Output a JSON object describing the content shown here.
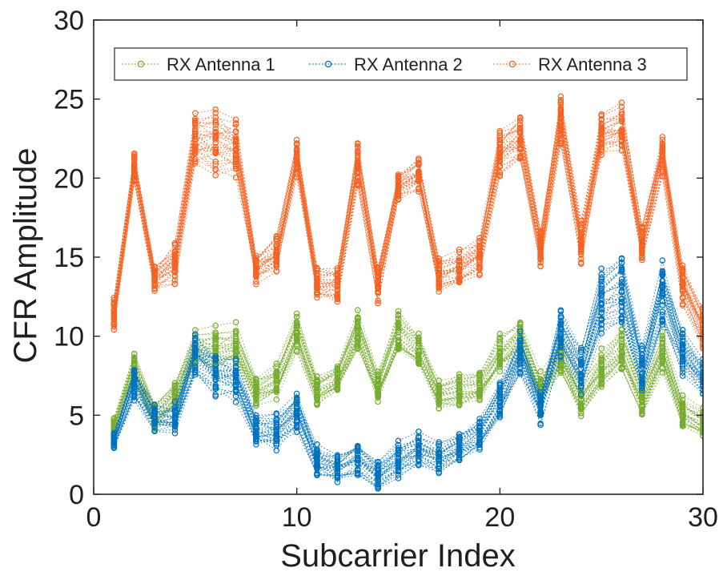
{
  "chart_data": {
    "type": "line",
    "xlabel": "Subcarrier Index",
    "ylabel": "CFR Amplitude",
    "xlim": [
      0,
      30
    ],
    "ylim": [
      0,
      30
    ],
    "xticks": [
      0,
      10,
      20,
      30
    ],
    "yticks": [
      0,
      5,
      10,
      15,
      20,
      25,
      30
    ],
    "grid": false,
    "legend_position": "top",
    "line_style": "dotted",
    "marker": "circle-open",
    "x": [
      1,
      2,
      3,
      4,
      5,
      6,
      7,
      8,
      9,
      10,
      11,
      12,
      13,
      14,
      15,
      16,
      17,
      18,
      19,
      20,
      21,
      22,
      23,
      24,
      25,
      26,
      27,
      28,
      29,
      30
    ],
    "series": [
      {
        "name": "RX Antenna 1",
        "color": "#77ac30",
        "mean": [
          4.3,
          8.2,
          5.0,
          6.3,
          9.4,
          9.3,
          9.5,
          6.7,
          7.2,
          10.3,
          6.7,
          7.4,
          10.5,
          6.9,
          10.3,
          9.3,
          6.4,
          6.7,
          7.0,
          9.0,
          10.0,
          6.7,
          8.9,
          6.1,
          8.0,
          9.3,
          6.1,
          9.0,
          5.3,
          4.6
        ],
        "spread": [
          0.6,
          0.9,
          0.9,
          1.0,
          1.1,
          1.3,
          1.3,
          1.0,
          1.1,
          1.2,
          1.0,
          1.1,
          1.4,
          1.0,
          1.4,
          1.2,
          1.0,
          1.0,
          1.0,
          1.2,
          1.1,
          1.0,
          1.2,
          1.1,
          1.2,
          1.4,
          1.0,
          1.2,
          1.0,
          0.9
        ]
      },
      {
        "name": "RX Antenna 2",
        "color": "#0072bd",
        "mean": [
          3.4,
          7.0,
          4.8,
          4.8,
          8.8,
          7.6,
          7.3,
          4.0,
          3.9,
          5.3,
          2.1,
          1.6,
          2.3,
          1.2,
          2.2,
          2.8,
          2.3,
          3.0,
          3.8,
          6.0,
          8.9,
          5.5,
          10.3,
          7.8,
          12.1,
          13.0,
          7.9,
          12.6,
          9.0,
          7.4
        ],
        "spread": [
          0.5,
          1.0,
          1.0,
          1.0,
          1.3,
          1.5,
          1.5,
          1.0,
          1.2,
          1.3,
          1.0,
          1.0,
          1.1,
          1.0,
          1.1,
          1.1,
          1.0,
          1.0,
          1.1,
          1.2,
          1.4,
          1.2,
          1.8,
          1.7,
          2.2,
          2.5,
          1.6,
          2.2,
          1.6,
          1.2
        ]
      },
      {
        "name": "RX Antenna 3",
        "color": "#f36424",
        "mean": [
          11.5,
          20.7,
          13.7,
          14.7,
          22.5,
          22.3,
          22.0,
          14.4,
          15.2,
          21.3,
          13.4,
          13.3,
          21.0,
          13.3,
          19.5,
          20.3,
          13.9,
          14.3,
          15.2,
          21.7,
          22.6,
          15.6,
          23.7,
          16.0,
          22.8,
          23.3,
          15.9,
          21.5,
          13.3,
          10.7
        ],
        "spread": [
          1.0,
          1.0,
          1.0,
          1.3,
          1.6,
          2.0,
          1.8,
          1.2,
          1.3,
          1.2,
          1.1,
          1.1,
          1.3,
          1.1,
          1.0,
          1.1,
          1.0,
          1.2,
          1.2,
          1.5,
          1.5,
          1.2,
          1.6,
          1.3,
          1.5,
          1.8,
          1.2,
          1.3,
          1.3,
          1.4
        ]
      }
    ],
    "traces_per_series": 30
  }
}
